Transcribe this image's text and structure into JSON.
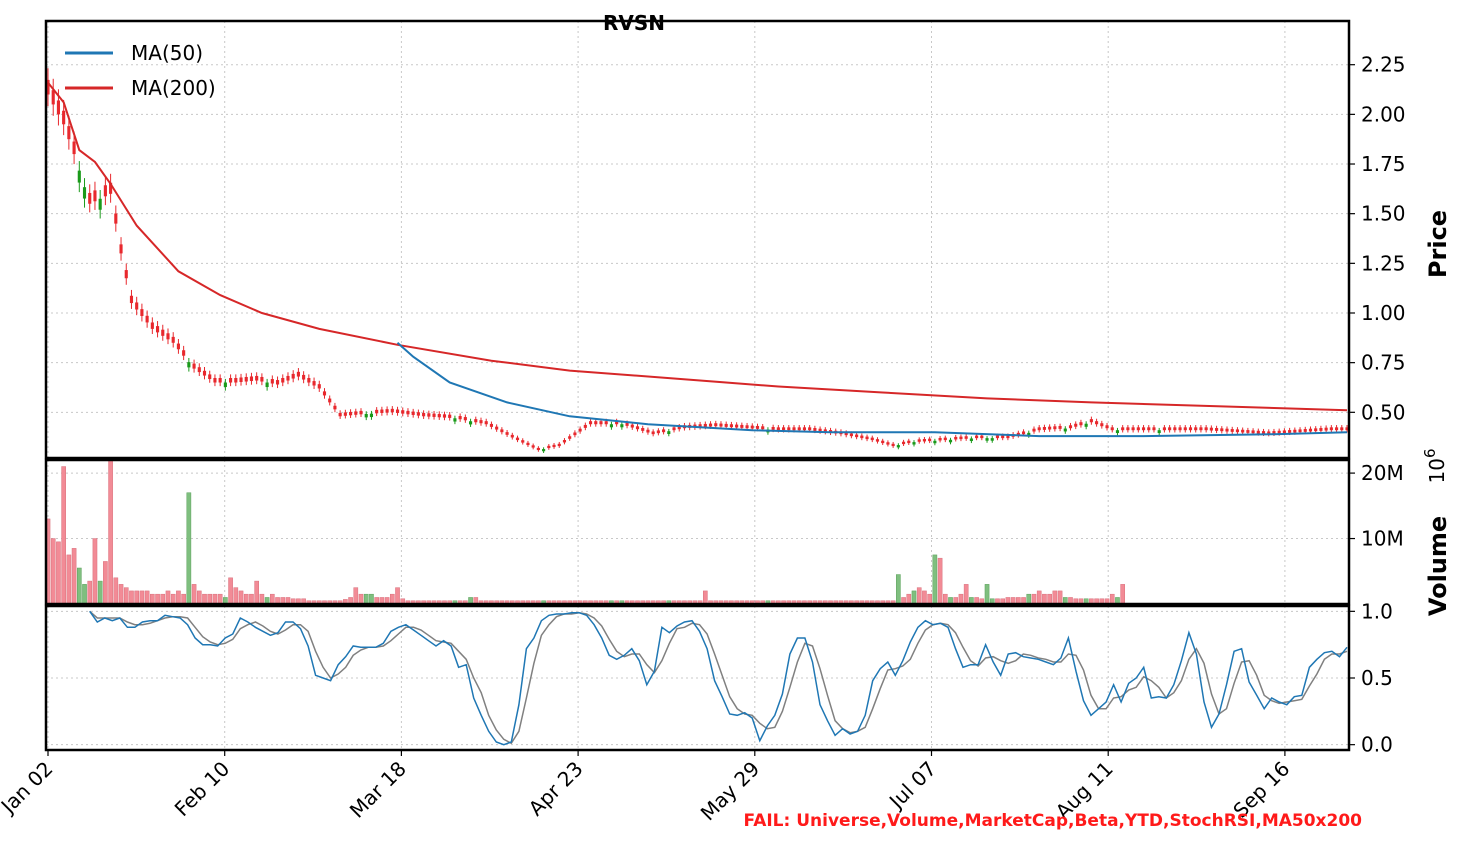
{
  "chart_data": [
    {
      "type": "candlestick",
      "title": "RVSN",
      "ylabel": "Price",
      "ylim": [
        0.27,
        2.47
      ],
      "yticks": [
        "0.50",
        "0.75",
        "1.00",
        "1.25",
        "1.50",
        "1.75",
        "2.00",
        "2.25"
      ],
      "ytick_values": [
        0.5,
        0.75,
        1.0,
        1.25,
        1.5,
        1.75,
        2.0,
        2.25
      ],
      "grid": true,
      "legend_position": "top-left",
      "legend": [
        {
          "name": "MA(50)",
          "color": "#1f77b4"
        },
        {
          "name": "MA(200)",
          "color": "#d62728"
        }
      ],
      "ohlc_close_samples": [
        {
          "i": 0,
          "close": 2.1
        },
        {
          "i": 3,
          "close": 1.95
        },
        {
          "i": 5,
          "close": 1.8
        },
        {
          "i": 8,
          "close": 1.55
        },
        {
          "i": 12,
          "close": 1.6
        },
        {
          "i": 14,
          "close": 1.3
        },
        {
          "i": 16,
          "close": 1.05
        },
        {
          "i": 20,
          "close": 0.92
        },
        {
          "i": 24,
          "close": 0.85
        },
        {
          "i": 28,
          "close": 0.72
        },
        {
          "i": 32,
          "close": 0.65
        },
        {
          "i": 36,
          "close": 0.65
        },
        {
          "i": 40,
          "close": 0.66
        },
        {
          "i": 44,
          "close": 0.64
        },
        {
          "i": 48,
          "close": 0.68
        },
        {
          "i": 52,
          "close": 0.62
        },
        {
          "i": 56,
          "close": 0.48
        },
        {
          "i": 60,
          "close": 0.49
        },
        {
          "i": 66,
          "close": 0.5
        },
        {
          "i": 72,
          "close": 0.48
        },
        {
          "i": 78,
          "close": 0.47
        },
        {
          "i": 84,
          "close": 0.44
        },
        {
          "i": 90,
          "close": 0.36
        },
        {
          "i": 94,
          "close": 0.31
        },
        {
          "i": 98,
          "close": 0.33
        },
        {
          "i": 104,
          "close": 0.44
        },
        {
          "i": 110,
          "close": 0.44
        },
        {
          "i": 116,
          "close": 0.39
        },
        {
          "i": 122,
          "close": 0.42
        },
        {
          "i": 128,
          "close": 0.43
        },
        {
          "i": 134,
          "close": 0.42
        },
        {
          "i": 140,
          "close": 0.41
        },
        {
          "i": 146,
          "close": 0.41
        },
        {
          "i": 152,
          "close": 0.39
        },
        {
          "i": 158,
          "close": 0.36
        },
        {
          "i": 162,
          "close": 0.33
        },
        {
          "i": 166,
          "close": 0.35
        },
        {
          "i": 172,
          "close": 0.36
        },
        {
          "i": 178,
          "close": 0.37
        },
        {
          "i": 184,
          "close": 0.37
        },
        {
          "i": 190,
          "close": 0.41
        },
        {
          "i": 196,
          "close": 0.42
        },
        {
          "i": 200,
          "close": 0.45
        },
        {
          "i": 204,
          "close": 0.41
        },
        {
          "i": 210,
          "close": 0.41
        },
        {
          "i": 216,
          "close": 0.41
        },
        {
          "i": 222,
          "close": 0.41
        },
        {
          "i": 228,
          "close": 0.4
        },
        {
          "i": 234,
          "close": 0.39
        },
        {
          "i": 240,
          "close": 0.4
        },
        {
          "i": 246,
          "close": 0.41
        },
        {
          "i": 249,
          "close": 0.41
        }
      ],
      "ma50": [
        {
          "i": 67,
          "v": 0.85
        },
        {
          "i": 70,
          "v": 0.78
        },
        {
          "i": 77,
          "v": 0.65
        },
        {
          "i": 88,
          "v": 0.55
        },
        {
          "i": 100,
          "v": 0.48
        },
        {
          "i": 115,
          "v": 0.44
        },
        {
          "i": 135,
          "v": 0.41
        },
        {
          "i": 150,
          "v": 0.4
        },
        {
          "i": 170,
          "v": 0.4
        },
        {
          "i": 190,
          "v": 0.38
        },
        {
          "i": 210,
          "v": 0.38
        },
        {
          "i": 235,
          "v": 0.39
        },
        {
          "i": 249,
          "v": 0.4
        }
      ],
      "ma200": [
        {
          "i": 0,
          "v": 2.16
        },
        {
          "i": 3,
          "v": 2.06
        },
        {
          "i": 6,
          "v": 1.82
        },
        {
          "i": 9,
          "v": 1.76
        },
        {
          "i": 12,
          "v": 1.65
        },
        {
          "i": 17,
          "v": 1.44
        },
        {
          "i": 25,
          "v": 1.21
        },
        {
          "i": 33,
          "v": 1.09
        },
        {
          "i": 41,
          "v": 1.0
        },
        {
          "i": 52,
          "v": 0.92
        },
        {
          "i": 67,
          "v": 0.84
        },
        {
          "i": 85,
          "v": 0.76
        },
        {
          "i": 100,
          "v": 0.71
        },
        {
          "i": 120,
          "v": 0.67
        },
        {
          "i": 140,
          "v": 0.63
        },
        {
          "i": 160,
          "v": 0.6
        },
        {
          "i": 180,
          "v": 0.57
        },
        {
          "i": 200,
          "v": 0.55
        },
        {
          "i": 225,
          "v": 0.53
        },
        {
          "i": 249,
          "v": 0.51
        }
      ]
    },
    {
      "type": "bar",
      "ylabel": "Volume",
      "ylim": [
        0,
        22000000
      ],
      "yticks": [
        "10M",
        "20M"
      ],
      "ytick_values": [
        10000000,
        20000000
      ],
      "scale_label": "10^6",
      "up_color": "#7fbf7f",
      "down_color": "#f28b96",
      "volume_millions": [
        13,
        10,
        9.5,
        21,
        7.5,
        8.5,
        5.5,
        3,
        3.5,
        10,
        3.5,
        6.5,
        22,
        4,
        3,
        2.5,
        2,
        2,
        2,
        2,
        1.5,
        1.5,
        1.5,
        2,
        1.5,
        2,
        1.5,
        17,
        3,
        2,
        1.5,
        1.5,
        1.5,
        1.5,
        1,
        4,
        2.5,
        2,
        1.5,
        1.5,
        3.5,
        1.5,
        1,
        1.5,
        1,
        1,
        1,
        0.8,
        0.8,
        0.8,
        0.5,
        0.5,
        0.5,
        0.5,
        0.5,
        0.5,
        0.5,
        0.7,
        1,
        2.5,
        1.5,
        1.5,
        1.5,
        1,
        1,
        1,
        1.5,
        2.5,
        0.8,
        0.5,
        0.5,
        0.5,
        0.5,
        0.5,
        0.5,
        0.5,
        0.5,
        0.5,
        0.5,
        0.5,
        0.5,
        1,
        1,
        0.5,
        0.5,
        0.5,
        0.5,
        0.5,
        0.5,
        0.5,
        0.5,
        0.5,
        0.5,
        0.5,
        0.5,
        0.5,
        0.5,
        0.5,
        0.5,
        0.5,
        0.5,
        0.5,
        0.5,
        0.5,
        0.5,
        0.5,
        0.5,
        0.5,
        0.5,
        0.5,
        0.5,
        0.5,
        0.5,
        0.5,
        0.5,
        0.5,
        0.5,
        0.5,
        0.5,
        0.5,
        0.5,
        0.5,
        0.5,
        0.5,
        0.5,
        0.5,
        2,
        0.5,
        0.5,
        0.5,
        0.5,
        0.5,
        0.5,
        0.5,
        0.5,
        0.5,
        0.5,
        0.5,
        0.5,
        0.5,
        0.5,
        0.5,
        0.5,
        0.5,
        0.5,
        0.5,
        0.5,
        0.5,
        0.5,
        0.5,
        0.5,
        0.5,
        0.5,
        0.5,
        0.5,
        0.5,
        0.5,
        0.5,
        0.5,
        0.5,
        0.5,
        0.5,
        0.5,
        4.5,
        1,
        1.5,
        2,
        2.5,
        2,
        1.5,
        7.5,
        7,
        1.5,
        1,
        1,
        1.5,
        3,
        1,
        1,
        0.8,
        3,
        0.8,
        0.8,
        0.8,
        1,
        1,
        1,
        1,
        1.5,
        1.5,
        2,
        1.5,
        1.5,
        2,
        2,
        1,
        1,
        0.8,
        0.8,
        0.8,
        0.8,
        0.8,
        0.8,
        0.8,
        1.5,
        1,
        3
      ],
      "up_days": [
        6,
        7,
        10,
        27,
        34,
        42,
        61,
        62,
        78,
        81,
        95,
        108,
        110,
        119,
        138,
        163,
        166,
        170,
        173,
        177,
        180,
        181,
        188,
        195,
        199,
        205,
        213
      ],
      "grid": true
    },
    {
      "type": "line",
      "name": "StochRSI",
      "ylim": [
        -0.04,
        1.04
      ],
      "yticks": [
        "0.0",
        "0.5",
        "1.0"
      ],
      "ytick_values": [
        0.0,
        0.5,
        1.0
      ],
      "k_color": "#1f77b4",
      "d_color": "#808080",
      "k": [
        1.0,
        0.92,
        0.95,
        0.93,
        0.95,
        0.88,
        0.88,
        0.92,
        0.93,
        0.93,
        0.97,
        0.96,
        0.95,
        0.9,
        0.8,
        0.75,
        0.75,
        0.74,
        0.8,
        0.83,
        0.95,
        0.92,
        0.88,
        0.85,
        0.82,
        0.84,
        0.92,
        0.92,
        0.87,
        0.74,
        0.52,
        0.5,
        0.48,
        0.6,
        0.66,
        0.74,
        0.73,
        0.73,
        0.73,
        0.76,
        0.85,
        0.88,
        0.9,
        0.86,
        0.82,
        0.78,
        0.74,
        0.78,
        0.74,
        0.58,
        0.6,
        0.35,
        0.22,
        0.1,
        0.02,
        0.0,
        0.02,
        0.3,
        0.72,
        0.8,
        0.93,
        0.97,
        0.98,
        0.98,
        0.99,
        0.99,
        0.97,
        0.9,
        0.8,
        0.67,
        0.64,
        0.67,
        0.72,
        0.63,
        0.45,
        0.55,
        0.88,
        0.84,
        0.89,
        0.92,
        0.93,
        0.85,
        0.72,
        0.48,
        0.36,
        0.23,
        0.22,
        0.24,
        0.2,
        0.03,
        0.14,
        0.22,
        0.38,
        0.68,
        0.8,
        0.8,
        0.62,
        0.3,
        0.18,
        0.07,
        0.12,
        0.08,
        0.1,
        0.22,
        0.48,
        0.57,
        0.62,
        0.52,
        0.63,
        0.77,
        0.88,
        0.93,
        0.9,
        0.91,
        0.88,
        0.72,
        0.58,
        0.6,
        0.6,
        0.75,
        0.62,
        0.52,
        0.68,
        0.69,
        0.66,
        0.65,
        0.64,
        0.62,
        0.6,
        0.65,
        0.8,
        0.55,
        0.33,
        0.22,
        0.27,
        0.32,
        0.45,
        0.32,
        0.46,
        0.5,
        0.58,
        0.35,
        0.36,
        0.35,
        0.45,
        0.63,
        0.84,
        0.68,
        0.32,
        0.13,
        0.23,
        0.45,
        0.7,
        0.72,
        0.47,
        0.37,
        0.27,
        0.35,
        0.32,
        0.3,
        0.36,
        0.37,
        0.58,
        0.64,
        0.69,
        0.7,
        0.66,
        0.73
      ],
      "d": [
        1.0,
        0.95,
        0.95,
        0.95,
        0.95,
        0.92,
        0.9,
        0.9,
        0.91,
        0.93,
        0.95,
        0.96,
        0.96,
        0.95,
        0.88,
        0.81,
        0.77,
        0.75,
        0.76,
        0.79,
        0.87,
        0.9,
        0.92,
        0.89,
        0.85,
        0.83,
        0.86,
        0.9,
        0.9,
        0.85,
        0.7,
        0.58,
        0.5,
        0.53,
        0.58,
        0.67,
        0.71,
        0.73,
        0.73,
        0.74,
        0.78,
        0.83,
        0.88,
        0.88,
        0.86,
        0.82,
        0.78,
        0.77,
        0.76,
        0.7,
        0.64,
        0.5,
        0.39,
        0.22,
        0.11,
        0.04,
        0.01,
        0.1,
        0.35,
        0.61,
        0.82,
        0.9,
        0.96,
        0.98,
        0.98,
        0.99,
        0.98,
        0.95,
        0.89,
        0.79,
        0.7,
        0.66,
        0.68,
        0.68,
        0.6,
        0.54,
        0.63,
        0.76,
        0.87,
        0.88,
        0.91,
        0.9,
        0.83,
        0.68,
        0.52,
        0.36,
        0.27,
        0.23,
        0.22,
        0.16,
        0.12,
        0.13,
        0.25,
        0.43,
        0.62,
        0.76,
        0.74,
        0.57,
        0.37,
        0.18,
        0.12,
        0.09,
        0.1,
        0.13,
        0.27,
        0.42,
        0.56,
        0.57,
        0.59,
        0.64,
        0.76,
        0.86,
        0.9,
        0.91,
        0.9,
        0.84,
        0.73,
        0.63,
        0.59,
        0.65,
        0.66,
        0.63,
        0.61,
        0.63,
        0.68,
        0.67,
        0.65,
        0.64,
        0.62,
        0.62,
        0.68,
        0.67,
        0.56,
        0.37,
        0.27,
        0.27,
        0.35,
        0.36,
        0.41,
        0.43,
        0.51,
        0.48,
        0.43,
        0.35,
        0.39,
        0.48,
        0.64,
        0.72,
        0.61,
        0.38,
        0.23,
        0.27,
        0.46,
        0.62,
        0.63,
        0.52,
        0.37,
        0.33,
        0.31,
        0.32,
        0.33,
        0.34,
        0.44,
        0.53,
        0.64,
        0.68,
        0.68,
        0.7
      ],
      "grid": true
    }
  ],
  "x_axis": {
    "tick_labels": [
      "Jan 02",
      "Feb 10",
      "Mar 18",
      "Apr 23",
      "May 29",
      "Jul 07",
      "Aug 11",
      "Sep 16"
    ]
  },
  "footer": {
    "fail_text": "FAIL: Universe,Volume,MarketCap,Beta,YTD,StochRSI,MA50x200"
  }
}
